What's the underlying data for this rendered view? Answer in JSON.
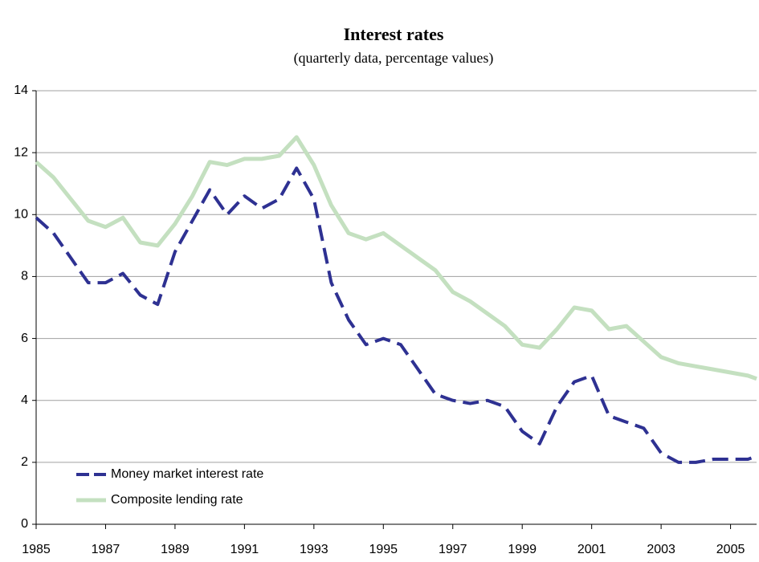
{
  "chart_data": {
    "type": "line",
    "title": "Interest rates",
    "subtitle": "(quarterly data, percentage values)",
    "x": [
      1985,
      1985.5,
      1986,
      1986.5,
      1987,
      1987.5,
      1988,
      1988.5,
      1989,
      1989.5,
      1990,
      1990.5,
      1991,
      1991.5,
      1992,
      1992.5,
      1993,
      1993.5,
      1994,
      1994.5,
      1995,
      1995.5,
      1996,
      1996.5,
      1997,
      1997.5,
      1998,
      1998.5,
      1999,
      1999.5,
      2000,
      2000.5,
      2001,
      2001.5,
      2002,
      2002.5,
      2003,
      2003.5,
      2004,
      2004.5,
      2005,
      2005.5,
      2005.75
    ],
    "series": [
      {
        "name": "Money market interest rate",
        "color": "#2e3192",
        "dashed": true,
        "values": [
          9.9,
          9.4,
          8.6,
          7.8,
          7.8,
          8.1,
          7.4,
          7.1,
          8.8,
          9.8,
          10.8,
          10.0,
          10.6,
          10.2,
          10.5,
          11.5,
          10.5,
          7.8,
          6.6,
          5.8,
          6.0,
          5.8,
          5.0,
          4.2,
          4.0,
          3.9,
          4.0,
          3.8,
          3.0,
          2.6,
          3.8,
          4.6,
          4.8,
          3.5,
          3.3,
          3.1,
          2.3,
          2.0,
          2.0,
          2.1,
          2.1,
          2.1,
          2.2
        ]
      },
      {
        "name": "Composite lending rate",
        "color": "#c4e0c0",
        "dashed": false,
        "values": [
          11.7,
          11.2,
          10.5,
          9.8,
          9.6,
          9.9,
          9.1,
          9.0,
          9.7,
          10.6,
          11.7,
          11.6,
          11.8,
          11.8,
          11.9,
          12.5,
          11.6,
          10.3,
          9.4,
          9.2,
          9.4,
          9.0,
          8.6,
          8.2,
          7.5,
          7.2,
          6.8,
          6.4,
          5.8,
          5.7,
          6.3,
          7.0,
          6.9,
          6.3,
          6.4,
          5.9,
          5.4,
          5.2,
          5.1,
          5.0,
          4.9,
          4.8,
          4.7
        ]
      }
    ],
    "xlim": [
      1985,
      2005.75
    ],
    "xticks": [
      1985,
      1987,
      1989,
      1991,
      1993,
      1995,
      1997,
      1999,
      2001,
      2003,
      2005
    ],
    "ylim": [
      0,
      14
    ],
    "yticks": [
      0,
      2,
      4,
      6,
      8,
      10,
      12,
      14
    ],
    "grid": true,
    "legend": "lower left"
  }
}
